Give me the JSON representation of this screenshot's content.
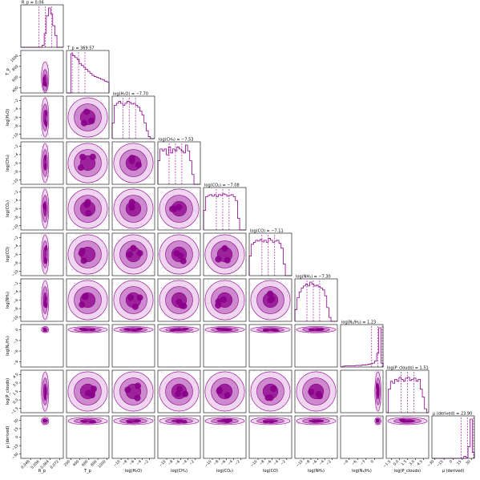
{
  "chart_data": {
    "type": "scatter",
    "subtype": "corner-plot",
    "colors": {
      "contour_dark": "#8b008b",
      "contour_mid": "#b24cb2",
      "contour_light": "#e3b5e3",
      "hist_line": "#8b008b",
      "background": "#ffffff"
    },
    "parameters": [
      {
        "key": "rp",
        "axis_label": "R_p",
        "title": "R_p = 0.06",
        "median": 0.06,
        "range": [
          0.04,
          0.075
        ],
        "ticks": [
          "0.048",
          "0.056",
          "0.064",
          "0.072"
        ],
        "tick_values": [
          0.048,
          0.056,
          0.064,
          0.072
        ],
        "hist": [
          0,
          0,
          0,
          0,
          0,
          0,
          0,
          0,
          0,
          0,
          0.05,
          0.35,
          0.8,
          1,
          0.85,
          0.55,
          0.3,
          0,
          0,
          0
        ]
      },
      {
        "key": "tp",
        "axis_label": "T_p",
        "title": "T_p = 369.57",
        "median": 369.57,
        "range": [
          100,
          1050
        ],
        "ticks": [
          "200",
          "400",
          "600",
          "800",
          "1000"
        ],
        "tick_values": [
          200,
          400,
          600,
          800,
          1000
        ],
        "hist": [
          0,
          0,
          1,
          0.95,
          0.9,
          0.85,
          0.75,
          0.7,
          0.65,
          0.6,
          0.55,
          0.5,
          0.45,
          0.42,
          0.4,
          0.38,
          0.35,
          0.33,
          0.3,
          0.28
        ]
      },
      {
        "key": "h2o",
        "axis_label": "log(H₂O)",
        "title": "log(H₂O) = −7.70",
        "median": -7.7,
        "range": [
          -12.5,
          -0.5
        ],
        "ticks": [
          "−10",
          "−8",
          "−6",
          "−4",
          "−2"
        ],
        "tick_values": [
          -10,
          -8,
          -6,
          -4,
          -2
        ],
        "hist": [
          0.4,
          0.85,
          0.9,
          0.95,
          0.9,
          0.85,
          0.9,
          0.95,
          0.92,
          0.88,
          0.9,
          0.85,
          0.8,
          0.7,
          0.6,
          0.4,
          0.2,
          0.05,
          0,
          0
        ]
      },
      {
        "key": "ch4",
        "axis_label": "log(CH₄)",
        "title": "log(CH₄) = −7.53",
        "median": -7.53,
        "range": [
          -12.5,
          -0.5
        ],
        "ticks": [
          "−10",
          "−8",
          "−6",
          "−4",
          "−2"
        ],
        "tick_values": [
          -10,
          -8,
          -6,
          -4,
          -2
        ],
        "hist": [
          0.6,
          0.9,
          0.85,
          0.9,
          0.75,
          0.95,
          0.8,
          0.9,
          0.85,
          0.95,
          0.9,
          0.85,
          0.8,
          1,
          0.85,
          0.6,
          0.25,
          0,
          0,
          0
        ]
      },
      {
        "key": "co2",
        "axis_label": "log(CO₂)",
        "title": "log(CO₂) = −7.08",
        "median": -7.08,
        "range": [
          -12.5,
          -0.5
        ],
        "ticks": [
          "−10",
          "−8",
          "−6",
          "−4",
          "−2"
        ],
        "tick_values": [
          -10,
          -8,
          -6,
          -4,
          -2
        ],
        "hist": [
          0.5,
          0.85,
          0.88,
          0.9,
          0.86,
          0.9,
          0.85,
          0.9,
          0.88,
          0.92,
          0.9,
          0.86,
          0.88,
          0.9,
          0.85,
          0.75,
          0.3,
          0,
          0,
          0
        ]
      },
      {
        "key": "co",
        "axis_label": "log(CO)",
        "title": "log(CO) = −7.11",
        "median": -7.11,
        "range": [
          -12.5,
          -0.5
        ],
        "ticks": [
          "−10",
          "−8",
          "−6",
          "−4",
          "−2"
        ],
        "tick_values": [
          -10,
          -8,
          -6,
          -4,
          -2
        ],
        "hist": [
          0.5,
          0.8,
          0.85,
          0.9,
          0.88,
          0.92,
          0.86,
          0.9,
          0.85,
          0.95,
          0.9,
          0.85,
          0.88,
          0.9,
          0.82,
          0.7,
          0.3,
          0,
          0,
          0
        ]
      },
      {
        "key": "nh3",
        "axis_label": "log(NH₃)",
        "title": "log(NH₃) = −7.30",
        "median": -7.3,
        "range": [
          -12.5,
          -0.5
        ],
        "ticks": [
          "−10",
          "−8",
          "−6",
          "−4",
          "−2"
        ],
        "tick_values": [
          -10,
          -8,
          -6,
          -4,
          -2
        ],
        "hist": [
          0.3,
          0.6,
          0.75,
          0.85,
          0.9,
          0.95,
          0.9,
          1,
          0.95,
          0.9,
          0.92,
          0.88,
          0.85,
          0.8,
          0.65,
          0.35,
          0.1,
          0,
          0,
          0
        ]
      },
      {
        "key": "n2h2",
        "axis_label": "log(N₂/H₂)",
        "title": "log(N₂/H₂) = 1.23",
        "median": 1.23,
        "range": [
          -12,
          3
        ],
        "ticks": [
          "−9",
          "−6",
          "−3",
          "0"
        ],
        "tick_values": [
          -9,
          -6,
          -3,
          0
        ],
        "hist": [
          0,
          0.02,
          0.03,
          0.03,
          0.03,
          0.03,
          0.03,
          0.04,
          0.04,
          0.04,
          0.05,
          0.05,
          0.06,
          0.07,
          0.08,
          0.1,
          0.15,
          0.35,
          1,
          0.1
        ]
      },
      {
        "key": "pclouds",
        "axis_label": "log(P_clouds)",
        "title": "log(P_clouds) = 1.51",
        "median": 1.51,
        "range": [
          -2.5,
          5.5
        ],
        "ticks": [
          "−1.5",
          "0.0",
          "1.5",
          "3.0",
          "4.5"
        ],
        "tick_values": [
          -1.5,
          0,
          1.5,
          3,
          4.5
        ],
        "hist": [
          0,
          0.6,
          0.8,
          0.75,
          0.85,
          0.8,
          0.9,
          0.85,
          0.8,
          0.88,
          0.9,
          0.82,
          0.85,
          0.88,
          0.8,
          0.85,
          0.6,
          0.4,
          0.1,
          0
        ]
      },
      {
        "key": "mu",
        "axis_label": "μ (derived)",
        "title": "μ (derived) = 23.90",
        "median": 23.9,
        "range": [
          -35,
          35
        ],
        "ticks": [
          "−30",
          "−15",
          "0",
          "15",
          "30"
        ],
        "tick_values": [
          -30,
          -15,
          0,
          15,
          30
        ],
        "hist": [
          0,
          0,
          0,
          0,
          0,
          0,
          0,
          0,
          0,
          0,
          0,
          0,
          0,
          0,
          0,
          0.05,
          0.02,
          0.3,
          1,
          0.15
        ]
      }
    ],
    "y_tick_labels": {
      "tp": [
        "400",
        "600",
        "800",
        "1000"
      ],
      "h2o": [
        "−10",
        "−8",
        "−6",
        "−4",
        "−2"
      ],
      "ch4": [
        "−10",
        "−8",
        "−6",
        "−4",
        "−2"
      ],
      "co2": [
        "−10",
        "−8",
        "−6",
        "−4",
        "−2"
      ],
      "co": [
        "−10",
        "−8",
        "−6",
        "−4",
        "−2"
      ],
      "nh3": [
        "−10",
        "−8",
        "−6",
        "−4",
        "−2"
      ],
      "n2h2": [
        "−9",
        "−6",
        "−3",
        "0"
      ],
      "pclouds": [
        "−1.5",
        "0.0",
        "1.5",
        "3.0",
        "4.5"
      ],
      "mu": [
        "−30",
        "−15",
        "0",
        "15",
        "30"
      ]
    }
  }
}
